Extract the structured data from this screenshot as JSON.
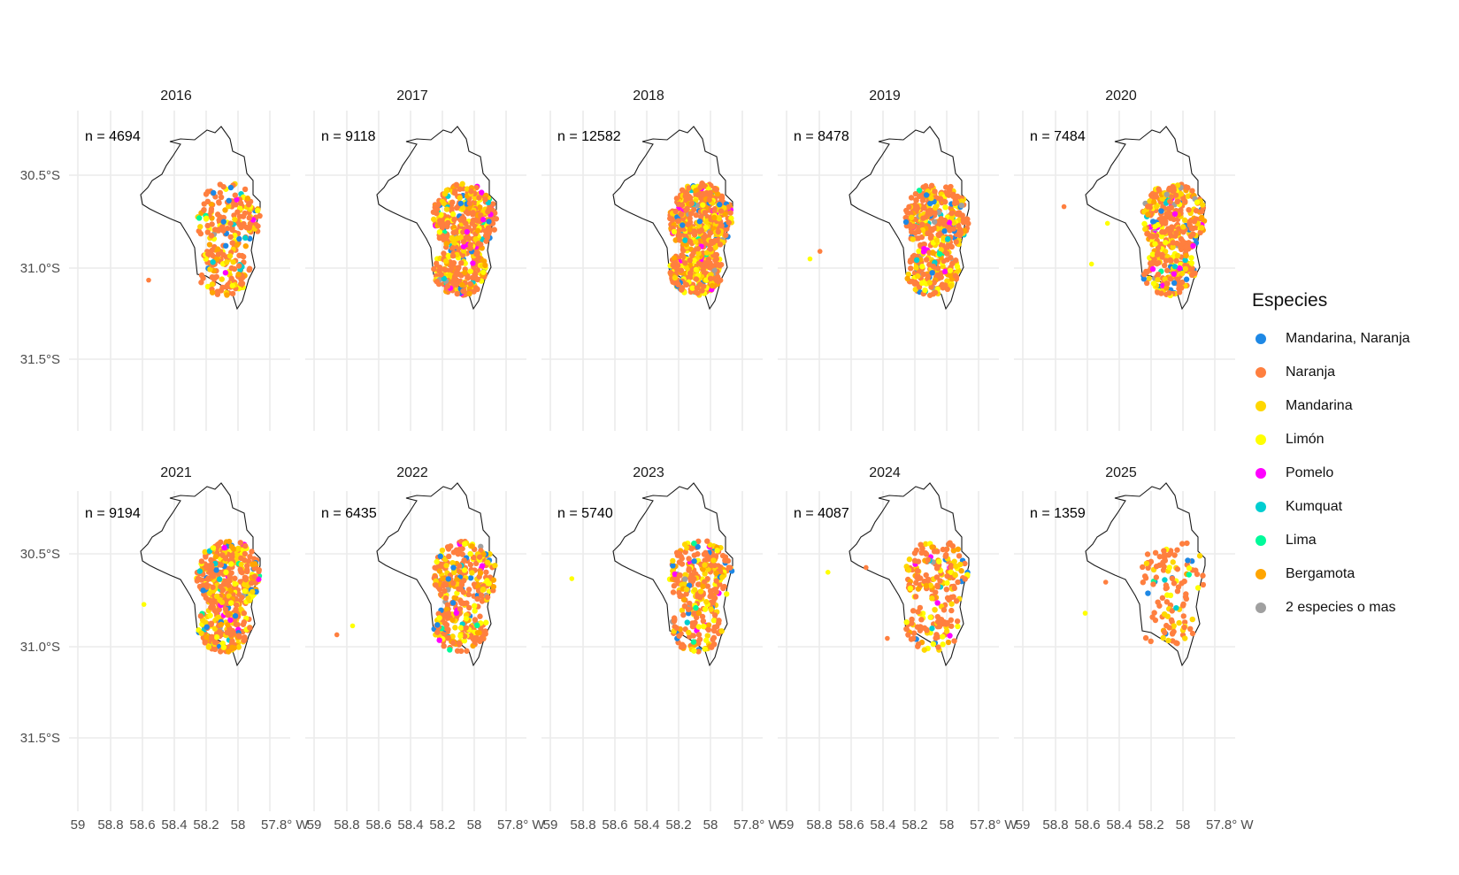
{
  "chart_data": {
    "type": "map-facets",
    "panels": [
      {
        "year": "2016",
        "n_label": "n = 4694"
      },
      {
        "year": "2017",
        "n_label": "n = 9118"
      },
      {
        "year": "2018",
        "n_label": "n = 12582"
      },
      {
        "year": "2019",
        "n_label": "n = 8478"
      },
      {
        "year": "2020",
        "n_label": "n = 7484"
      },
      {
        "year": "2021",
        "n_label": "n = 9194"
      },
      {
        "year": "2022",
        "n_label": "n = 6435"
      },
      {
        "year": "2023",
        "n_label": "n = 5740"
      },
      {
        "year": "2024",
        "n_label": "n = 4087"
      },
      {
        "year": "2025",
        "n_label": "n = 1359"
      }
    ],
    "y_ticks": [
      "30.5°S",
      "31.0°S",
      "31.5°S"
    ],
    "x_ticks": [
      "59",
      "58.8",
      "58.6",
      "58.4",
      "58.2",
      "58",
      "57.8° W"
    ],
    "legend": {
      "title": "Especies",
      "items": [
        {
          "label": "Mandarina, Naranja",
          "color": "#1E88E5"
        },
        {
          "label": "Naranja",
          "color": "#FF7F3F"
        },
        {
          "label": "Mandarina",
          "color": "#FFD700"
        },
        {
          "label": "Limón",
          "color": "#FFFF00"
        },
        {
          "label": "Pomelo",
          "color": "#FF00FF"
        },
        {
          "label": "Kumquat",
          "color": "#00CED1"
        },
        {
          "label": "Lima",
          "color": "#00FA9A"
        },
        {
          "label": "Bergamota",
          "color": "#FFA500"
        },
        {
          "label": "2 especies o mas",
          "color": "#A0A0A0"
        }
      ]
    },
    "grid": true
  }
}
